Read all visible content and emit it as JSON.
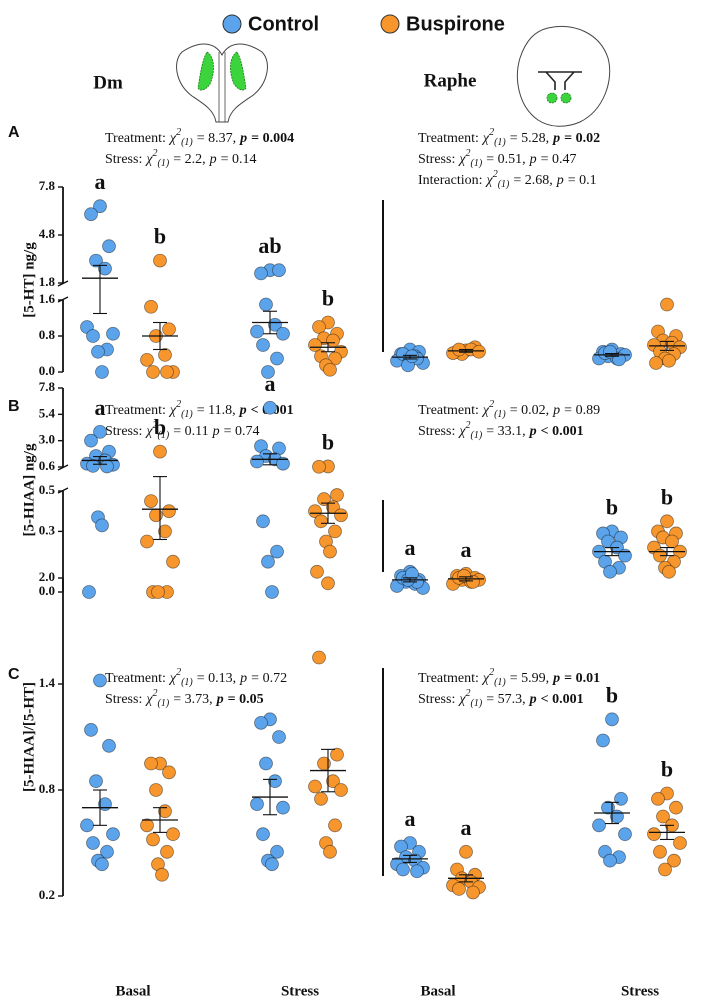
{
  "chart_data": {
    "type": "strip",
    "series": [
      {
        "name": "Control",
        "color": "#5ba3ea"
      },
      {
        "name": "Buspirone",
        "color": "#f7962c"
      }
    ],
    "regions": [
      "Dm",
      "Raphe"
    ],
    "categories": [
      "Basal",
      "Stress",
      "Basal",
      "Stress"
    ],
    "panels": [
      {
        "label": "A",
        "ylabel": "[5-HT] ng/g",
        "y_segments": [
          {
            "ylim": [
              0,
              1.6
            ],
            "yticks": [
              {
                "value": 0,
                "label": "0.0"
              },
              0.8,
              1.6
            ]
          },
          {
            "ylim": [
              1.8,
              7.8
            ],
            "yticks": [
              1.8,
              4.8,
              7.8
            ]
          }
        ],
        "stats": [
          [
            {
              "label": "Treatment:",
              "chi": "χ",
              "sup": "2",
              "sub": "(1)",
              "value": "= 8.37,",
              "p": "p",
              "p_value": "= 0.004",
              "bold": true
            },
            {
              "label": "Stress:",
              "chi": "χ",
              "sup": "2",
              "sub": "(1)",
              "value": "= 2.2,",
              "p": "p",
              "p_value": "= 0.14",
              "bold": false
            }
          ],
          [
            {
              "label": "Treatment:",
              "chi": "χ",
              "sup": "2",
              "sub": "(1)",
              "value": "= 5.28,",
              "p": "p",
              "p_value": "= 0.02",
              "bold": true
            },
            {
              "label": "Stress:",
              "chi": "χ",
              "sup": "2",
              "sub": "(1)",
              "value": "= 0.51,",
              "p": "p",
              "p_value": "= 0.47",
              "bold": false
            },
            {
              "label": "Interaction:",
              "chi": "χ",
              "sup": "2",
              "sub": "(1)",
              "value": "= 2.68,",
              "p": "p",
              "p_value": "= 0.1",
              "bold": false
            }
          ]
        ],
        "groups": [
          {
            "values": [
              6.6,
              6.1,
              4.1,
              3.2,
              2.7,
              1.0,
              0.85,
              0.8,
              0.5,
              0.45,
              0.0
            ],
            "mean": 2.1,
            "sem": 0.8,
            "letter": "a"
          },
          {
            "values": [
              3.2,
              1.45,
              0.95,
              0.8,
              0.38,
              0.27,
              0.0,
              0.0,
              0.0
            ],
            "mean": 0.8,
            "sem": 0.3,
            "letter": "b"
          },
          {
            "values": [
              2.6,
              2.4,
              2.6,
              1.5,
              1.05,
              0.9,
              0.85,
              0.6,
              0.3,
              0.0
            ],
            "mean": 1.1,
            "sem": 0.25,
            "letter": "ab"
          },
          {
            "values": [
              1.1,
              1.0,
              0.85,
              0.75,
              0.7,
              0.6,
              0.45,
              0.35,
              0.3,
              0.15,
              0.05
            ],
            "mean": 0.55,
            "sem": 0.1,
            "letter": "b"
          },
          {
            "values": [
              0.5,
              0.4,
              0.45,
              0.3,
              0.35,
              0.25,
              0.2,
              0.4,
              0.3,
              0.15,
              0.35
            ],
            "mean": 0.33,
            "sem": 0.04
          },
          {
            "values": [
              0.48,
              0.45,
              0.55,
              0.4,
              0.5,
              0.42,
              0.45,
              0.5
            ],
            "mean": 0.47,
            "sem": 0.03
          },
          {
            "values": [
              0.5,
              0.45,
              0.4,
              0.35,
              0.3,
              0.3,
              0.38,
              0.42,
              0.28,
              0.45
            ],
            "mean": 0.38,
            "sem": 0.03
          },
          {
            "values": [
              1.5,
              0.9,
              0.8,
              0.7,
              0.65,
              0.6,
              0.55,
              0.45,
              0.4,
              0.3,
              0.25,
              0.2
            ],
            "mean": 0.58,
            "sem": 0.1
          }
        ]
      },
      {
        "label": "B",
        "ylabel": "[5-HIAA] ng/g",
        "y_segments": [
          {
            "ylim": [
              0,
              0.5
            ],
            "yticks": [
              {
                "value": 0,
                "label": "0.0"
              },
              0.3,
              0.5
            ]
          },
          {
            "ylim": [
              0.6,
              7.8
            ],
            "yticks": [
              0.6,
              {
                "value": 3,
                "label": "3.0"
              },
              5.4,
              7.8
            ]
          }
        ],
        "stats": [
          [
            {
              "label": "Treatment:",
              "chi": "χ",
              "sup": "2",
              "sub": "(1)",
              "value": "= 11.8,",
              "p": "p",
              "p_value": "< 0.001",
              "bold": true
            },
            {
              "label": "Stress:",
              "chi": "χ",
              "sup": "2",
              "sub": "(1)",
              "value": "= 0.11",
              "p": "p",
              "p_value": "= 0.74",
              "bold": false
            }
          ],
          [
            {
              "label": "Treatment:",
              "chi": "χ",
              "sup": "2",
              "sub": "(1)",
              "value": "= 0.02,",
              "p": "p",
              "p_value": "= 0.89",
              "bold": false
            },
            {
              "label": "Stress:",
              "chi": "χ",
              "sup": "2",
              "sub": "(1)",
              "value": "= 33.1,",
              "p": "p",
              "p_value": "< 0.001",
              "bold": true
            }
          ]
        ],
        "groups": [
          {
            "values": [
              3.8,
              3.0,
              2.0,
              1.6,
              1.2,
              0.9,
              0.8,
              0.7,
              0.65,
              0.37,
              0.33,
              0.0
            ],
            "mean": 1.2,
            "sem": 0.35,
            "letter": "a"
          },
          {
            "values": [
              2.0,
              0.45,
              0.4,
              0.38,
              0.3,
              0.25,
              0.15,
              0.0,
              0.0,
              0.0
            ],
            "mean": 0.41,
            "sem": 0.15,
            "letter": "b"
          },
          {
            "values": [
              6.0,
              2.5,
              2.3,
              1.6,
              1.3,
              1.1,
              0.9,
              0.35,
              0.2,
              0.15,
              0.0
            ],
            "mean": 1.3,
            "sem": 0.5,
            "letter": "a"
          },
          {
            "values": [
              0.65,
              0.62,
              0.48,
              0.46,
              0.42,
              0.4,
              0.38,
              0.35,
              0.3,
              0.25,
              0.2,
              0.1
            ],
            "mean": 0.39,
            "sem": 0.05,
            "letter": "b"
          },
          {
            "values": [
              0.1,
              0.08,
              0.06,
              0.05,
              0.04,
              0.03,
              0.02,
              0.07,
              0.05,
              0.06,
              0.09
            ],
            "mean": 0.06,
            "sem": 0.01,
            "letter": "a"
          },
          {
            "values": [
              0.09,
              0.08,
              0.07,
              0.06,
              0.05,
              0.04,
              0.06,
              0.07,
              0.05,
              0.08
            ],
            "mean": 0.065,
            "sem": 0.01,
            "letter": "a"
          },
          {
            "values": [
              0.3,
              0.29,
              0.27,
              0.25,
              0.22,
              0.2,
              0.18,
              0.15,
              0.12,
              0.1
            ],
            "mean": 0.2,
            "sem": 0.02,
            "letter": "b"
          },
          {
            "values": [
              0.35,
              0.3,
              0.29,
              0.27,
              0.25,
              0.22,
              0.2,
              0.18,
              0.15,
              0.12,
              0.1
            ],
            "mean": 0.2,
            "sem": 0.02,
            "letter": "b"
          }
        ]
      },
      {
        "label": "C",
        "ylabel": "[5-HIAA]/[5-HT]",
        "y_segments": [
          {
            "ylim": [
              0.2,
              2.0
            ],
            "yticks": [
              0.2,
              0.8,
              1.4,
              {
                "value": 2,
                "label": "2.0"
              }
            ]
          }
        ],
        "stats": [
          [
            {
              "label": "Treatment:",
              "chi": "χ",
              "sup": "2",
              "sub": "(1)",
              "value": "= 0.13,",
              "p": "p",
              "p_value": "= 0.72",
              "bold": false
            },
            {
              "label": "Stress:",
              "chi": "χ",
              "sup": "2",
              "sub": "(1)",
              "value": "= 3.73,",
              "p": "p",
              "p_value": "= 0.05",
              "bold": true
            }
          ],
          [
            {
              "label": "Treatment:",
              "chi": "χ",
              "sup": "2",
              "sub": "(1)",
              "value": "= 5.99,",
              "p": "p",
              "p_value": "= 0.01",
              "bold": true
            },
            {
              "label": "Stress:",
              "chi": "χ",
              "sup": "2",
              "sub": "(1)",
              "value": "= 57.3,",
              "p": "p",
              "p_value": "< 0.001",
              "bold": true
            }
          ]
        ],
        "groups": [
          {
            "values": [
              1.42,
              1.14,
              1.05,
              0.85,
              0.72,
              0.6,
              0.55,
              0.5,
              0.45,
              0.4,
              0.38
            ],
            "mean": 0.7,
            "sem": 0.1
          },
          {
            "values": [
              0.95,
              0.95,
              0.9,
              0.8,
              0.68,
              0.6,
              0.55,
              0.52,
              0.45,
              0.38,
              0.32
            ],
            "mean": 0.63,
            "sem": 0.07
          },
          {
            "values": [
              1.2,
              1.18,
              1.1,
              0.95,
              0.85,
              0.72,
              0.7,
              0.55,
              0.45,
              0.4,
              0.38
            ],
            "mean": 0.76,
            "sem": 0.1
          },
          {
            "values": [
              1.97,
              1.55,
              1.0,
              0.95,
              0.85,
              0.82,
              0.8,
              0.75,
              0.6,
              0.5,
              0.45
            ],
            "mean": 0.91,
            "sem": 0.12
          },
          {
            "values": [
              0.5,
              0.48,
              0.45,
              0.42,
              0.4,
              0.38,
              0.36,
              0.35,
              0.34
            ],
            "mean": 0.41,
            "sem": 0.02,
            "letter": "a"
          },
          {
            "values": [
              0.45,
              0.35,
              0.32,
              0.3,
              0.28,
              0.26,
              0.25,
              0.24,
              0.22
            ],
            "mean": 0.3,
            "sem": 0.02,
            "letter": "a"
          },
          {
            "values": [
              1.2,
              1.08,
              0.75,
              0.7,
              0.65,
              0.6,
              0.55,
              0.45,
              0.42,
              0.4
            ],
            "mean": 0.67,
            "sem": 0.06,
            "letter": "b"
          },
          {
            "values": [
              0.78,
              0.75,
              0.7,
              0.65,
              0.6,
              0.55,
              0.5,
              0.45,
              0.4,
              0.35
            ],
            "mean": 0.56,
            "sem": 0.04,
            "letter": "b"
          }
        ]
      }
    ]
  }
}
